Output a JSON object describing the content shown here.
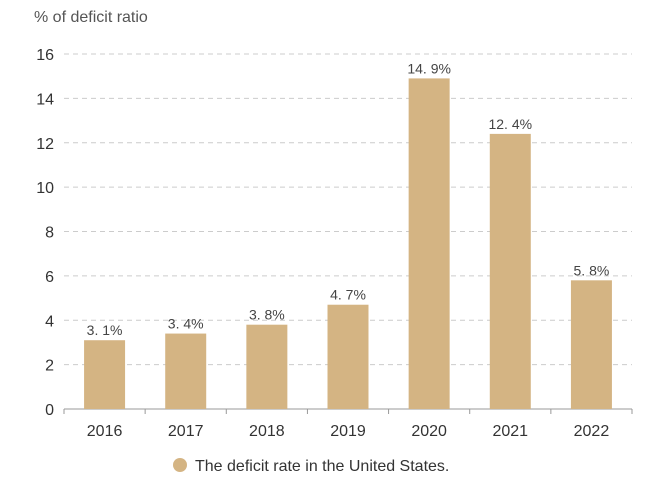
{
  "chart_data": {
    "type": "bar",
    "title": "",
    "xlabel": "",
    "ylabel": "% of deficit ratio",
    "categories": [
      "2016",
      "2017",
      "2018",
      "2019",
      "2020",
      "2021",
      "2022"
    ],
    "values": [
      3.1,
      3.4,
      3.8,
      4.7,
      14.9,
      12.4,
      5.8
    ],
    "data_labels": [
      "3. 1%",
      "3. 4%",
      "3. 8%",
      "4. 7%",
      "14. 9%",
      "12. 4%",
      "5. 8%"
    ],
    "ylim": [
      0,
      16
    ],
    "yticks": [
      0,
      2,
      4,
      6,
      8,
      10,
      12,
      14,
      16
    ],
    "grid": true,
    "legend": {
      "position": "bottom-center",
      "entries": [
        {
          "name": "The deficit rate in the United States.",
          "color": "#d4b483"
        }
      ]
    },
    "colors": {
      "bar": "#d4b483",
      "grid": "#cccccc",
      "axis": "#999999"
    }
  }
}
